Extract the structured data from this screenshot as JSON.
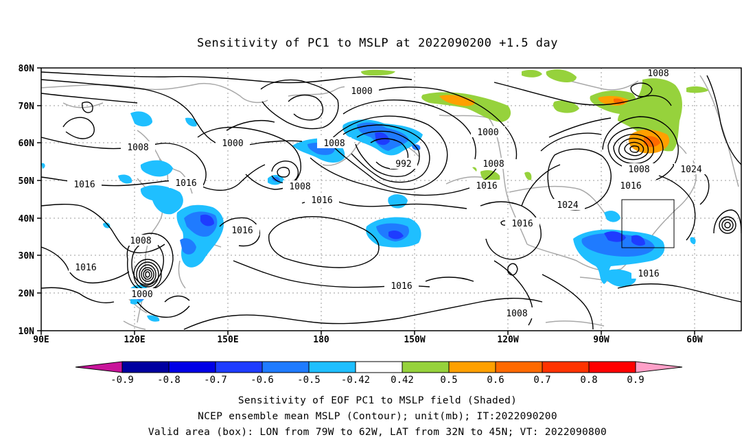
{
  "title": "Sensitivity of PC1 to MSLP at 2022090200 +1.5 day",
  "axes": {
    "lat_labels": [
      "80N",
      "70N",
      "60N",
      "50N",
      "40N",
      "30N",
      "20N",
      "10N"
    ],
    "lon_labels": [
      "90E",
      "120E",
      "150E",
      "180",
      "150W",
      "120W",
      "90W",
      "60W"
    ]
  },
  "contour_labels": {
    "c1008_ne": "1008",
    "c1000_top": "1000",
    "c1000_b": "1000",
    "c1008_a": "1008",
    "c1008_b": "1008",
    "c1000_c": "1000",
    "c992": "992",
    "c1008_c": "1008",
    "c1008_d": "1008",
    "c1024_a": "1024",
    "c1016_a": "1016",
    "c1016_b": "1016",
    "c1016_c": "1016",
    "c1016_d": "1016",
    "c1016_e": "1016",
    "c1016_f": "1016",
    "c1024_b": "1024",
    "c1016_g": "1016",
    "c1016_h": "1016",
    "c1008_e": "1008",
    "c1016_i": "1016",
    "c1000_d": "1000",
    "c1016_j": "1016",
    "c1008_f": "1008",
    "c1008_g": "1008"
  },
  "colorbar": {
    "labels": [
      "-0.9",
      "-0.8",
      "-0.7",
      "-0.6",
      "-0.5",
      "-0.42",
      "0.42",
      "0.5",
      "0.6",
      "0.7",
      "0.8",
      "0.9"
    ],
    "colors": [
      "#c8149a",
      "#0000a0",
      "#0000e6",
      "#1e3cff",
      "#1f7bff",
      "#1fbfff",
      "#ffffff",
      "#96d23c",
      "#ffa000",
      "#ff6a00",
      "#ff3300",
      "#ff0000",
      "#ffa0c8"
    ]
  },
  "captions": {
    "line1": "Sensitivity of EOF PC1 to MSLP field (Shaded)",
    "line2": "NCEP ensemble mean MSLP (Contour); unit(mb); IT:2022090200",
    "line3": "Valid area (box): LON from 79W to 62W, LAT from 32N to 45N; VT: 2022090800"
  }
}
